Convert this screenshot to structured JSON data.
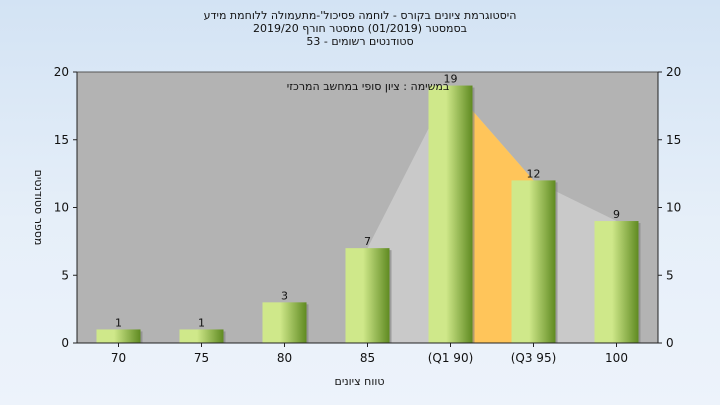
{
  "title_lines": [
    "היסטוגרמת ציונים בקורס - לוחמה פסיכול'-מתעמולה ללוחמת מידע",
    "בסמסטר  (01/2019)  סמסטר חורף  2019/20",
    "סטודנטים רשומים - 53"
  ],
  "colors": {
    "plot_bg": "#b3b3b3",
    "bar_light": "#cfe88a",
    "bar_dark": "#5f8a21",
    "highlight_area": "#ffc55a",
    "cumulative_area": "#c9c9c9"
  },
  "chart_data": {
    "type": "bar",
    "categories": [
      "70",
      "75",
      "80",
      "85",
      "(Q1 90)",
      "(Q3 95)",
      "100"
    ],
    "values": [
      1,
      1,
      3,
      7,
      19,
      12,
      9
    ],
    "data_labels": [
      "1",
      "1",
      "3",
      "7",
      "19",
      "12",
      "9"
    ],
    "ylabel": "מספר סטודנטים",
    "xlabel": "טווח ציונים",
    "ylim": [
      0,
      20
    ],
    "yticks": [
      0,
      5,
      10,
      15,
      20
    ],
    "secondary_y": true,
    "annotation": "במשימה : ציון סופי במחשב המרכזי",
    "highlighted_range": [
      "(Q1 90)",
      "(Q3 95)"
    ],
    "grid": false
  }
}
